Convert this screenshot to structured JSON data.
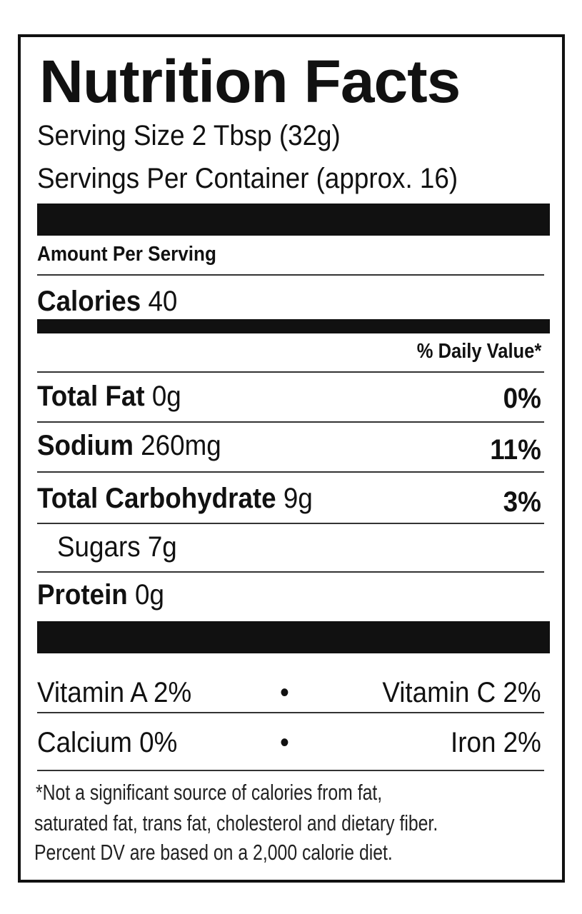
{
  "title": "Nutrition Facts",
  "serving_size": "Serving Size 2 Tbsp (32g)",
  "servings_per_container": "Servings Per Container (approx. 16)",
  "amount_per_serving": "Amount Per Serving",
  "calories": {
    "label": "Calories",
    "value": "40"
  },
  "daily_value_header": "% Daily Value*",
  "nutrients": [
    {
      "label": "Total Fat",
      "amount": "0g",
      "dv": "0%"
    },
    {
      "label": "Sodium",
      "amount": "260mg",
      "dv": "11%"
    },
    {
      "label": "Total Carbohydrate",
      "amount": "9g",
      "dv": "3%"
    },
    {
      "label": "Sugars",
      "amount": "7g",
      "dv": ""
    },
    {
      "label": "Protein",
      "amount": "0g",
      "dv": ""
    }
  ],
  "vitamins": [
    {
      "left": "Vitamin A 2%",
      "right": "Vitamin C 2%"
    },
    {
      "left": "Calcium 0%",
      "right": "Iron 2%"
    }
  ],
  "bullet": "•",
  "footnote": [
    "*Not a significant source of calories from fat,",
    "saturated fat, trans fat, cholesterol and dietary fiber.",
    "Percent DV are based on a 2,000 calorie diet."
  ]
}
